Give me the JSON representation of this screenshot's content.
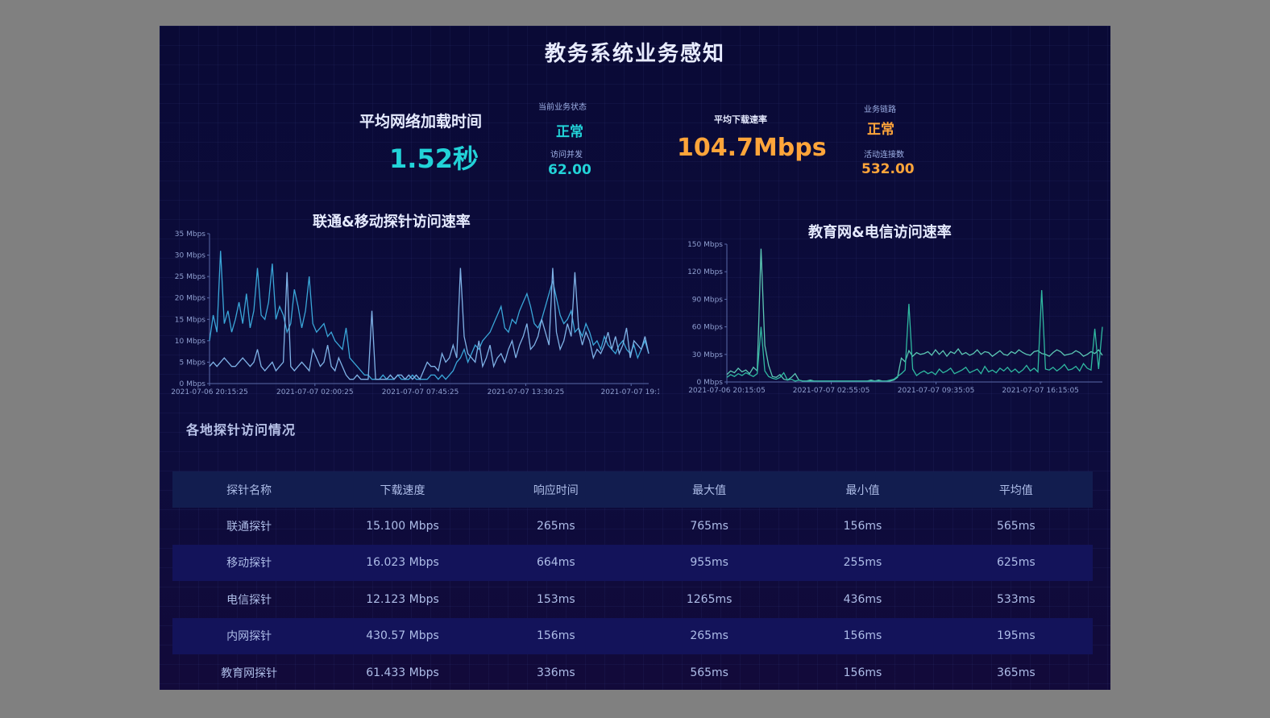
{
  "title": "教务系统业务感知",
  "kpis": {
    "avg_load_label": "平均网络加载时间",
    "avg_load_value": "1.52秒",
    "status_label": "当前业务状态",
    "status_value": "正常",
    "concurrency_label": "访问并发",
    "concurrency_value": "62.00",
    "avg_download_label": "平均下载速率",
    "avg_download_value": "104.7Mbps",
    "link_label": "业务链路",
    "link_value": "正常",
    "active_conn_label": "活动连接数",
    "active_conn_value": "532.00"
  },
  "colors": {
    "cyan": "#22d3d8",
    "orange": "#ffa53a",
    "line_blue": "#3aa6d8",
    "line_lightblue": "#7fb2e6",
    "line_teal": "#2fb8a0",
    "line_teal2": "#5cc8b4"
  },
  "chart_data": [
    {
      "type": "line",
      "title": "联通&移动探针访问速率",
      "y_ticks": [
        "0 Mbps",
        "5 Mbps",
        "10 Mbps",
        "15 Mbps",
        "20 Mbps",
        "25 Mbps",
        "30 Mbps",
        "35 Mbps"
      ],
      "ylim": [
        0,
        35
      ],
      "x_ticks": [
        "2021-07-06 20:15:25",
        "2021-07-07 02:00:25",
        "2021-07-07 07:45:25",
        "2021-07-07 13:30:25",
        "2021-07-07 19:1"
      ],
      "series": [
        {
          "values": [
            10,
            16,
            12,
            31,
            14,
            17,
            12,
            15,
            19,
            14,
            21,
            13,
            17,
            27,
            16,
            15,
            19,
            28,
            15,
            18,
            16,
            12,
            14,
            22,
            18,
            13,
            17,
            25,
            14,
            12,
            13,
            14,
            11,
            12,
            10,
            9,
            8,
            13,
            6,
            5,
            4,
            3,
            2,
            2,
            1,
            1,
            1,
            2,
            1,
            1,
            1,
            2,
            1,
            1,
            1,
            2,
            1,
            1,
            1,
            1,
            2,
            2,
            1,
            2,
            1,
            2,
            3,
            5,
            6,
            8,
            5,
            7,
            9,
            8,
            10,
            11,
            12,
            14,
            16,
            18,
            13,
            12,
            15,
            14,
            17,
            19,
            21,
            18,
            14,
            13,
            15,
            18,
            21,
            24,
            20,
            16,
            14,
            15,
            17,
            12,
            13,
            11,
            14,
            12,
            9,
            10,
            8,
            11,
            9,
            8,
            7,
            9,
            10,
            8,
            7,
            9,
            6,
            8,
            10,
            7
          ]
        },
        {
          "values": [
            4,
            5,
            4,
            5,
            6,
            5,
            4,
            4,
            5,
            6,
            5,
            4,
            5,
            8,
            4,
            3,
            4,
            5,
            3,
            4,
            5,
            26,
            4,
            3,
            4,
            5,
            4,
            3,
            8,
            6,
            4,
            5,
            9,
            4,
            3,
            6,
            4,
            2,
            1,
            1,
            2,
            1,
            1,
            1,
            17,
            1,
            1,
            1,
            1,
            2,
            1,
            2,
            2,
            1,
            2,
            1,
            2,
            1,
            3,
            5,
            4,
            4,
            3,
            7,
            5,
            6,
            9,
            6,
            27,
            11,
            7,
            6,
            5,
            10,
            4,
            6,
            9,
            4,
            6,
            7,
            5,
            8,
            10,
            6,
            9,
            11,
            14,
            8,
            9,
            11,
            15,
            12,
            9,
            27,
            12,
            8,
            10,
            14,
            11,
            26,
            13,
            9,
            12,
            10,
            6,
            8,
            7,
            9,
            12,
            8,
            11,
            7,
            9,
            13,
            6,
            10,
            9,
            8,
            11,
            7
          ]
        }
      ]
    },
    {
      "type": "line",
      "title": "教育网&电信访问速率",
      "y_ticks": [
        "0 Mbps",
        "30 Mbps",
        "60 Mbps",
        "90 Mbps",
        "120 Mbps",
        "150 Mbps"
      ],
      "ylim": [
        0,
        150
      ],
      "x_ticks": [
        "2021-07-06 20:15:05",
        "2021-07-07 02:55:05",
        "2021-07-07 09:35:05",
        "2021-07-07 16:15:05"
      ],
      "series": [
        {
          "values": [
            8,
            12,
            10,
            15,
            11,
            13,
            9,
            16,
            12,
            145,
            40,
            18,
            6,
            5,
            8,
            3,
            2,
            5,
            9,
            2,
            1,
            1,
            2,
            1,
            1,
            1,
            1,
            1,
            1,
            1,
            1,
            1,
            1,
            1,
            1,
            1,
            1,
            1,
            2,
            1,
            2,
            1,
            1,
            1,
            2,
            5,
            26,
            22,
            34,
            28,
            32,
            30,
            31,
            33,
            29,
            35,
            30,
            34,
            28,
            33,
            31,
            36,
            30,
            32,
            29,
            31,
            35,
            30,
            33,
            32,
            28,
            31,
            34,
            30,
            29,
            33,
            31,
            35,
            32,
            30,
            29,
            33,
            34,
            31,
            30,
            28,
            32,
            35,
            33,
            29,
            30,
            31,
            34,
            32,
            28,
            30,
            33,
            31,
            35,
            29
          ]
        },
        {
          "values": [
            5,
            8,
            6,
            9,
            7,
            10,
            8,
            6,
            9,
            60,
            12,
            6,
            4,
            3,
            5,
            10,
            2,
            3,
            1,
            2,
            1,
            1,
            1,
            1,
            1,
            1,
            1,
            1,
            1,
            1,
            1,
            1,
            1,
            1,
            1,
            1,
            1,
            1,
            1,
            1,
            1,
            1,
            1,
            2,
            3,
            6,
            9,
            13,
            85,
            14,
            7,
            10,
            12,
            9,
            11,
            8,
            14,
            10,
            12,
            15,
            9,
            11,
            13,
            16,
            10,
            12,
            14,
            9,
            17,
            11,
            13,
            10,
            15,
            12,
            16,
            11,
            14,
            10,
            13,
            18,
            12,
            15,
            11,
            100,
            14,
            13,
            16,
            12,
            15,
            19,
            13,
            14,
            17,
            12,
            20,
            15,
            13,
            58,
            14,
            60
          ]
        }
      ]
    }
  ],
  "probe_section_title": "各地探针访问情况",
  "table": {
    "headers": [
      "探针名称",
      "下载速度",
      "响应时间",
      "最大值",
      "最小值",
      "平均值"
    ],
    "rows": [
      [
        "联通探针",
        "15.100 Mbps",
        "265ms",
        "765ms",
        "156ms",
        "565ms"
      ],
      [
        "移动探针",
        "16.023 Mbps",
        "664ms",
        "955ms",
        "255ms",
        "625ms"
      ],
      [
        "电信探针",
        "12.123 Mbps",
        "153ms",
        "1265ms",
        "436ms",
        "533ms"
      ],
      [
        "内网探针",
        "430.57 Mbps",
        "156ms",
        "265ms",
        "156ms",
        "195ms"
      ],
      [
        "教育网探针",
        "61.433 Mbps",
        "336ms",
        "565ms",
        "156ms",
        "365ms"
      ]
    ]
  }
}
